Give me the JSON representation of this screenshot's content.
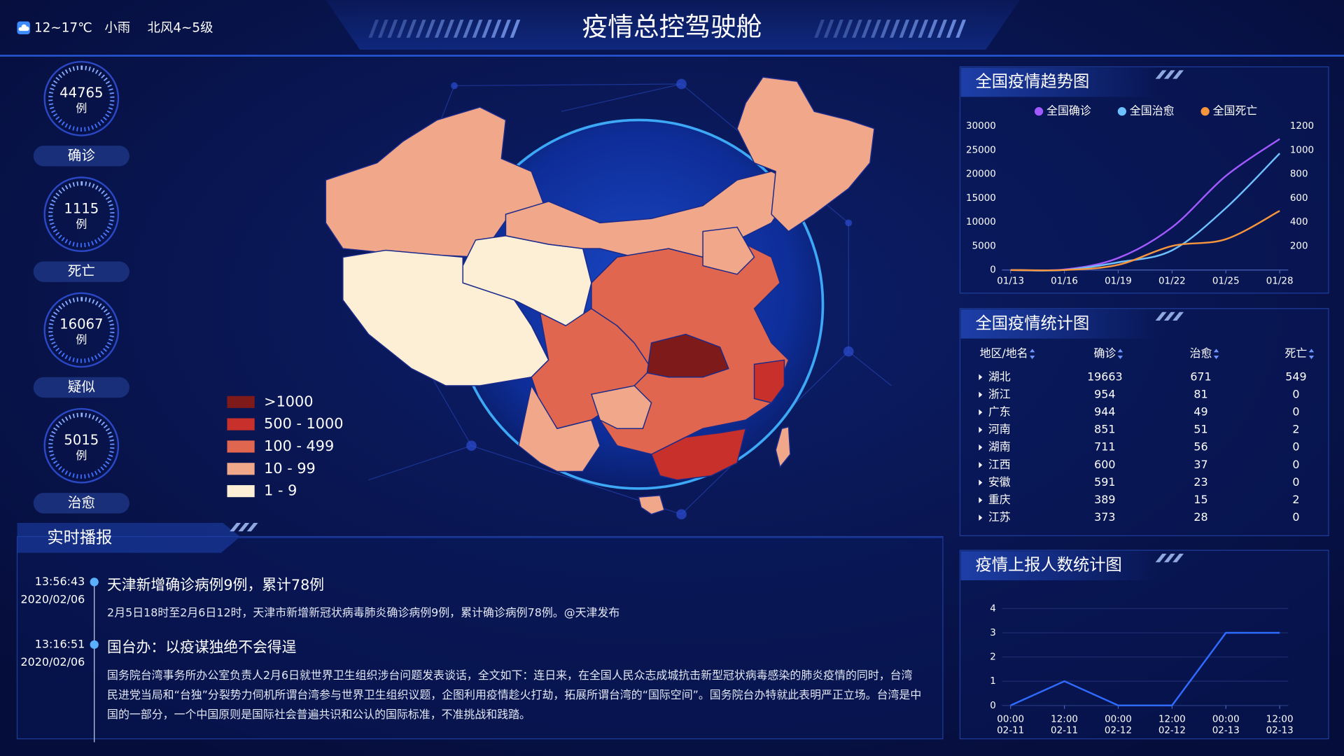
{
  "header": {
    "title": "疫情总控驾驶舱",
    "weather": {
      "temp": "12~17℃",
      "condition": "小雨",
      "wind": "北风4~5级"
    }
  },
  "stats": [
    {
      "value": 44765,
      "unit": "例",
      "label": "确诊"
    },
    {
      "value": 1115,
      "unit": "例",
      "label": "死亡"
    },
    {
      "value": 16067,
      "unit": "例",
      "label": "疑似"
    },
    {
      "value": 5015,
      "unit": "例",
      "label": "治愈"
    }
  ],
  "map": {
    "legend": [
      {
        "label": ">1000",
        "color": "#7f1a1a"
      },
      {
        "label": "500 - 1000",
        "color": "#c8302b"
      },
      {
        "label": "100 - 499",
        "color": "#e0664f"
      },
      {
        "label": "10 - 99",
        "color": "#f0a78a"
      },
      {
        "label": "1 - 9",
        "color": "#fdeed6"
      }
    ]
  },
  "chart_data": [
    {
      "type": "line",
      "title": "全国疫情趋势图",
      "categories": [
        "01/13",
        "01/16",
        "01/19",
        "01/22",
        "01/25",
        "01/28"
      ],
      "series": [
        {
          "name": "全国确诊",
          "color": "#a259ff",
          "values": [
            0,
            100,
            2500,
            8900,
            19600,
            27300
          ]
        },
        {
          "name": "全国治愈",
          "color": "#6ec1ff",
          "values": [
            0,
            0,
            1600,
            4100,
            12900,
            24300
          ]
        },
        {
          "name": "全国死亡",
          "color": "#f7963c",
          "axis": "y2",
          "values": [
            0,
            0,
            43,
            200,
            257,
            493
          ]
        }
      ],
      "ylim": [
        0,
        30000
      ],
      "yticks": [
        0,
        5000,
        10000,
        15000,
        20000,
        25000,
        30000
      ],
      "y2lim": [
        0,
        1200
      ],
      "y2ticks": [
        200,
        400,
        600,
        800,
        1000,
        1200
      ]
    },
    {
      "type": "line",
      "title": "疫情上报人数统计图",
      "categories": [
        [
          "00:00",
          "02-11"
        ],
        [
          "12:00",
          "02-11"
        ],
        [
          "00:00",
          "02-12"
        ],
        [
          "12:00",
          "02-12"
        ],
        [
          "00:00",
          "02-13"
        ],
        [
          "12:00",
          "02-13"
        ]
      ],
      "series": [
        {
          "color": "#2f6bff",
          "values": [
            0,
            1,
            0,
            0,
            3,
            3
          ]
        }
      ],
      "ylim": [
        0,
        4
      ],
      "yticks": [
        0,
        1,
        2,
        3,
        4
      ],
      "grid": true
    }
  ],
  "table": {
    "title": "全国疫情统计图",
    "columns": [
      "地区/地名",
      "确诊",
      "治愈",
      "死亡"
    ],
    "rows": [
      [
        "湖北",
        19663,
        671,
        549
      ],
      [
        "浙江",
        954,
        81,
        0
      ],
      [
        "广东",
        944,
        49,
        0
      ],
      [
        "河南",
        851,
        51,
        2
      ],
      [
        "湖南",
        711,
        56,
        0
      ],
      [
        "江西",
        600,
        37,
        0
      ],
      [
        "安徽",
        591,
        23,
        0
      ],
      [
        "重庆",
        389,
        15,
        2
      ],
      [
        "江苏",
        373,
        28,
        0
      ]
    ]
  },
  "news": {
    "title": "实时播报",
    "items": [
      {
        "time": "13:56:43",
        "date": "2020/02/06",
        "title": "天津新增确诊病例9例，累计78例",
        "body": "2月5日18时至2月6日12时，天津市新增新冠状病毒肺炎确诊病例9例，累计确诊病例78例。@天津发布"
      },
      {
        "time": "13:16:51",
        "date": "2020/02/06",
        "title": "国台办：以疫谋独绝不会得逞",
        "body": "国务院台湾事务所办公室负责人2月6日就世界卫生组织涉台问题发表谈话，全文如下：连日来，在全国人民众志成城抗击新型冠状病毒感染的肺炎疫情的同时，台湾民进党当局和“台独”分裂势力伺机所谓台湾参与世界卫生组织议题，企图利用疫情趁火打劫，拓展所谓台湾的“国际空间”。国务院台办特就此表明严正立场。台湾是中国的一部分，一个中国原则是国际社会普遍共识和公认的国际标准，不准挑战和践踏。"
      }
    ]
  }
}
